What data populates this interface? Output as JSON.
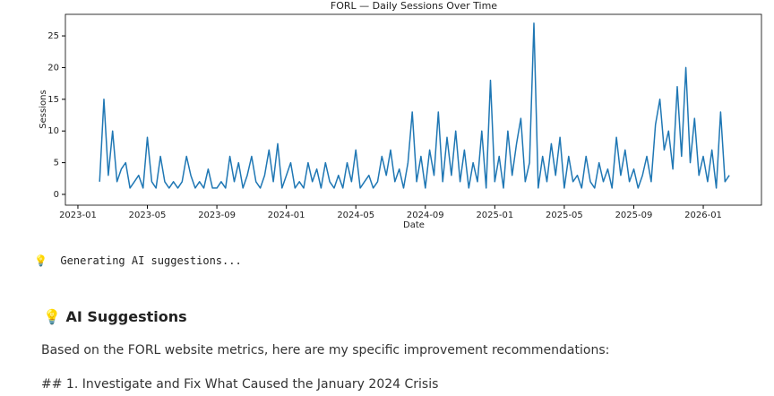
{
  "chart_data": {
    "type": "line",
    "title": "FORL — Daily Sessions Over Time",
    "x_label": "Date",
    "y_label": "Sessions",
    "color": "#1f77b4",
    "x": [
      1.25,
      1.5,
      1.75,
      2,
      2.25,
      2.5,
      2.75,
      3,
      3.25,
      3.5,
      3.75,
      4,
      4.25,
      4.5,
      4.75,
      5,
      5.25,
      5.5,
      5.75,
      6,
      6.25,
      6.5,
      6.75,
      7,
      7.25,
      7.5,
      7.75,
      8,
      8.25,
      8.5,
      8.75,
      9,
      9.25,
      9.5,
      9.75,
      10,
      10.25,
      10.5,
      10.75,
      11,
      11.25,
      11.5,
      11.75,
      12,
      12.25,
      12.5,
      12.75,
      13,
      13.25,
      13.5,
      13.75,
      14,
      14.25,
      14.5,
      14.75,
      15,
      15.25,
      15.5,
      15.75,
      16,
      16.25,
      16.5,
      16.75,
      17,
      17.25,
      17.5,
      17.75,
      18,
      18.25,
      18.5,
      18.75,
      19,
      19.25,
      19.5,
      19.75,
      20,
      20.25,
      20.5,
      20.75,
      21,
      21.25,
      21.5,
      21.75,
      22,
      22.25,
      22.5,
      22.75,
      23,
      23.25,
      23.5,
      23.75,
      24,
      24.25,
      24.5,
      24.75,
      25,
      25.25,
      25.5,
      25.75,
      26,
      26.25,
      26.5,
      26.75,
      27,
      27.25,
      27.5,
      27.75,
      28,
      28.25,
      28.5,
      28.75,
      29,
      29.25,
      29.5,
      29.75,
      30,
      30.25,
      30.5,
      30.75,
      31,
      31.25,
      31.5,
      31.75,
      32,
      32.25,
      32.5,
      32.75,
      33,
      33.25,
      33.5,
      33.75,
      34,
      34.25,
      34.5,
      34.75,
      35,
      35.25,
      35.5,
      35.75,
      36,
      36.25,
      36.5,
      36.75,
      37,
      37.25,
      37.5
    ],
    "values": [
      2,
      15,
      3,
      10,
      2,
      4,
      5,
      1,
      2,
      3,
      1,
      9,
      2,
      1,
      6,
      2,
      1,
      2,
      1,
      2,
      6,
      3,
      1,
      2,
      1,
      4,
      1,
      1,
      2,
      1,
      6,
      2,
      5,
      1,
      3,
      6,
      2,
      1,
      3,
      7,
      2,
      8,
      1,
      3,
      5,
      1,
      2,
      1,
      5,
      2,
      4,
      1,
      5,
      2,
      1,
      3,
      1,
      5,
      2,
      7,
      1,
      2,
      3,
      1,
      2,
      6,
      3,
      7,
      2,
      4,
      1,
      5,
      13,
      2,
      6,
      1,
      7,
      3,
      13,
      2,
      9,
      3,
      10,
      2,
      7,
      1,
      5,
      2,
      10,
      1,
      18,
      2,
      6,
      1,
      10,
      3,
      8,
      12,
      2,
      5,
      27,
      1,
      6,
      2,
      8,
      3,
      9,
      1,
      6,
      2,
      3,
      1,
      6,
      2,
      1,
      5,
      2,
      4,
      1,
      9,
      3,
      7,
      2,
      4,
      1,
      3,
      6,
      2,
      11,
      15,
      7,
      10,
      4,
      17,
      6,
      20,
      5,
      12,
      3,
      6,
      2,
      7,
      1,
      13,
      2,
      3
    ],
    "xlim": [
      -0.72,
      39.35
    ],
    "ylim": [
      -1.7,
      28.4
    ],
    "xticks": [
      {
        "value": 0,
        "label": "2023-01"
      },
      {
        "value": 4,
        "label": "2023-05"
      },
      {
        "value": 8,
        "label": "2023-09"
      },
      {
        "value": 12,
        "label": "2024-01"
      },
      {
        "value": 16,
        "label": "2024-05"
      },
      {
        "value": 20,
        "label": "2024-09"
      },
      {
        "value": 24,
        "label": "2025-01"
      },
      {
        "value": 28,
        "label": "2025-05"
      },
      {
        "value": 32,
        "label": "2025-09"
      },
      {
        "value": 36,
        "label": "2026-01"
      }
    ],
    "yticks": [
      0,
      5,
      10,
      15,
      20,
      25
    ]
  },
  "log": {
    "icon": "💡",
    "text": "Generating AI suggestions..."
  },
  "section": {
    "icon": "💡",
    "title": "AI Suggestions",
    "paragraph": "Based on the FORL website metrics, here are my specific improvement recommendations:",
    "next": "## 1. Investigate and Fix What Caused the January 2024 Crisis"
  }
}
